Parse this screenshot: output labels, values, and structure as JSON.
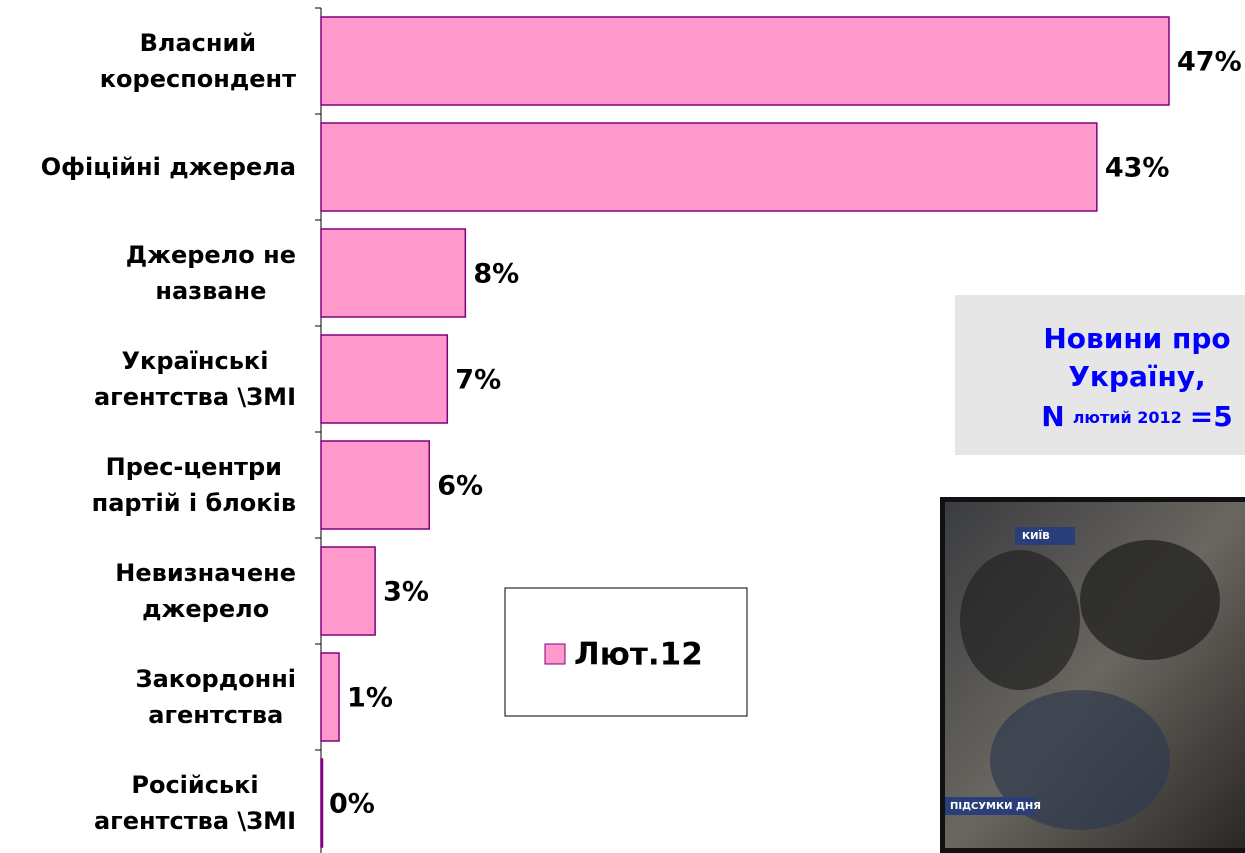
{
  "chart_data": {
    "type": "bar",
    "orientation": "horizontal",
    "categories": [
      "Власний\nкореспондент",
      "Офіційні джерела",
      "Джерело не\nназване",
      "Українські\nагентства \\ЗМІ",
      "Прес-центри\nпартій і блоків",
      "Невизначене\nджерело",
      "Закордонні\nагентства",
      "Російські\nагентства \\ЗМІ"
    ],
    "series": [
      {
        "name": "Лют.12",
        "color": "#ff99cc",
        "edge_color": "#800080",
        "values": [
          47,
          43,
          8,
          7,
          6,
          3,
          1,
          0
        ],
        "value_labels": [
          "47%",
          "43%",
          "8%",
          "7%",
          "6%",
          "3%",
          "1%",
          "0%"
        ]
      }
    ],
    "xlim": [
      0,
      47
    ],
    "annotation": {
      "lines": [
        "Новини про",
        "Україну,"
      ],
      "sample": [
        "N",
        "лютий 2012",
        "=5"
      ],
      "color": "#0000ff"
    }
  },
  "photo": {
    "captions": [
      "КИЇВ",
      "ПІДСУМКИ ДНЯ"
    ]
  }
}
